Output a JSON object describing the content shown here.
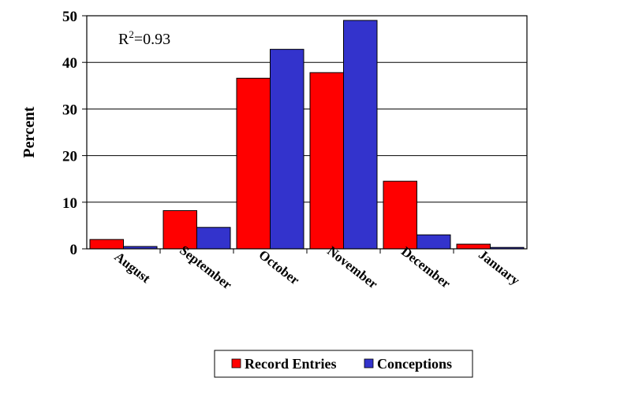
{
  "chart_data": {
    "type": "bar",
    "categories": [
      "August",
      "September",
      "October",
      "November",
      "December",
      "January"
    ],
    "series": [
      {
        "name": "Record Entries",
        "color": "#ff0000",
        "values": [
          2.0,
          8.2,
          36.6,
          37.8,
          14.5,
          1.0
        ]
      },
      {
        "name": "Conceptions",
        "color": "#3333cc",
        "values": [
          0.5,
          4.6,
          42.8,
          49.0,
          3.0,
          0.3
        ]
      }
    ],
    "ylabel": "Percent",
    "ylim": [
      0,
      50
    ],
    "yticks": [
      "0",
      "10",
      "20",
      "30",
      "40",
      "50"
    ],
    "annotation": {
      "base": "R",
      "sup": "2",
      "rest": "=0.93"
    },
    "grid": true,
    "legend_position": "bottom-center"
  }
}
